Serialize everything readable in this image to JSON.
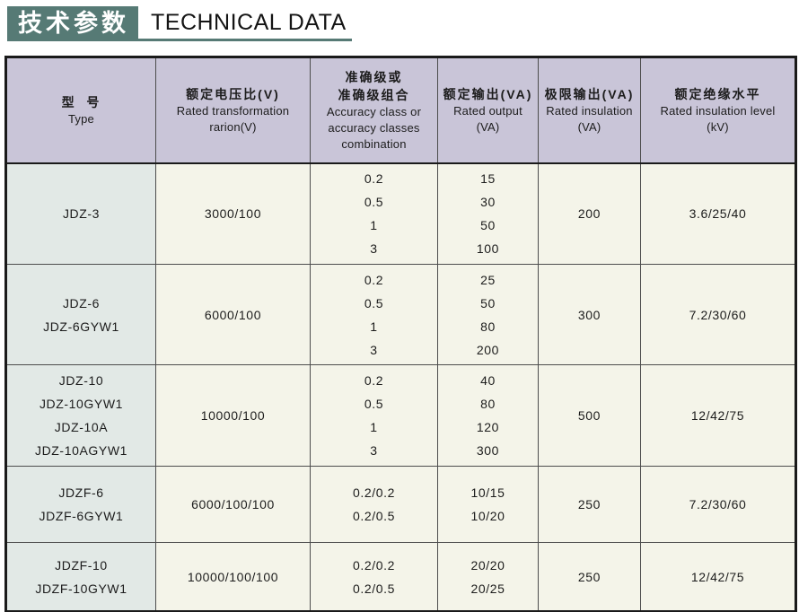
{
  "title": {
    "zh": "技术参数",
    "en": "TECHNICAL DATA"
  },
  "colors": {
    "title_bg": "#567a75",
    "header_bg": "#c9c5d8",
    "type_col_bg": "#e2e9e6",
    "cell_bg": "#f4f4e9",
    "border_dark": "#1a1a1a",
    "border_inner": "#4d4d4d"
  },
  "table": {
    "headers": [
      {
        "zh_lines": [
          "型  号"
        ],
        "en_lines": [
          "Type"
        ]
      },
      {
        "zh_lines": [
          "额定电压比(V)"
        ],
        "en_lines": [
          "Rated transformation",
          "rarion(V)"
        ]
      },
      {
        "zh_lines": [
          "准确级或",
          "准确级组合"
        ],
        "en_lines": [
          "Accuracy class or",
          "accuracy classes",
          "combination"
        ]
      },
      {
        "zh_lines": [
          "额定输出(VA)"
        ],
        "en_lines": [
          "Rated output",
          "(VA)"
        ]
      },
      {
        "zh_lines": [
          "极限输出(VA)"
        ],
        "en_lines": [
          "Rated insulation",
          "(VA)"
        ]
      },
      {
        "zh_lines": [
          "额定绝缘水平"
        ],
        "en_lines": [
          "Rated insulation level",
          "(kV)"
        ]
      }
    ],
    "rows": [
      {
        "types": [
          "JDZ-3"
        ],
        "ratio": "3000/100",
        "accuracy": [
          "0.2",
          "0.5",
          "1",
          "3"
        ],
        "rated_output": [
          "15",
          "30",
          "50",
          "100"
        ],
        "limit_output": "200",
        "insulation_level": "3.6/25/40"
      },
      {
        "types": [
          "JDZ-6",
          "JDZ-6GYW1"
        ],
        "ratio": "6000/100",
        "accuracy": [
          "0.2",
          "0.5",
          "1",
          "3"
        ],
        "rated_output": [
          "25",
          "50",
          "80",
          "200"
        ],
        "limit_output": "300",
        "insulation_level": "7.2/30/60"
      },
      {
        "types": [
          "JDZ-10",
          "JDZ-10GYW1",
          "JDZ-10A",
          "JDZ-10AGYW1"
        ],
        "ratio": "10000/100",
        "accuracy": [
          "0.2",
          "0.5",
          "1",
          "3"
        ],
        "rated_output": [
          "40",
          "80",
          "120",
          "300"
        ],
        "limit_output": "500",
        "insulation_level": "12/42/75"
      },
      {
        "types": [
          "JDZF-6",
          "JDZF-6GYW1"
        ],
        "ratio": "6000/100/100",
        "accuracy": [
          "0.2/0.2",
          "0.2/0.5"
        ],
        "rated_output": [
          "10/15",
          "10/20"
        ],
        "limit_output": "250",
        "insulation_level": "7.2/30/60"
      },
      {
        "types": [
          "JDZF-10",
          "JDZF-10GYW1"
        ],
        "ratio": "10000/100/100",
        "accuracy": [
          "0.2/0.2",
          "0.2/0.5"
        ],
        "rated_output": [
          "20/20",
          "20/25"
        ],
        "limit_output": "250",
        "insulation_level": "12/42/75"
      }
    ]
  }
}
